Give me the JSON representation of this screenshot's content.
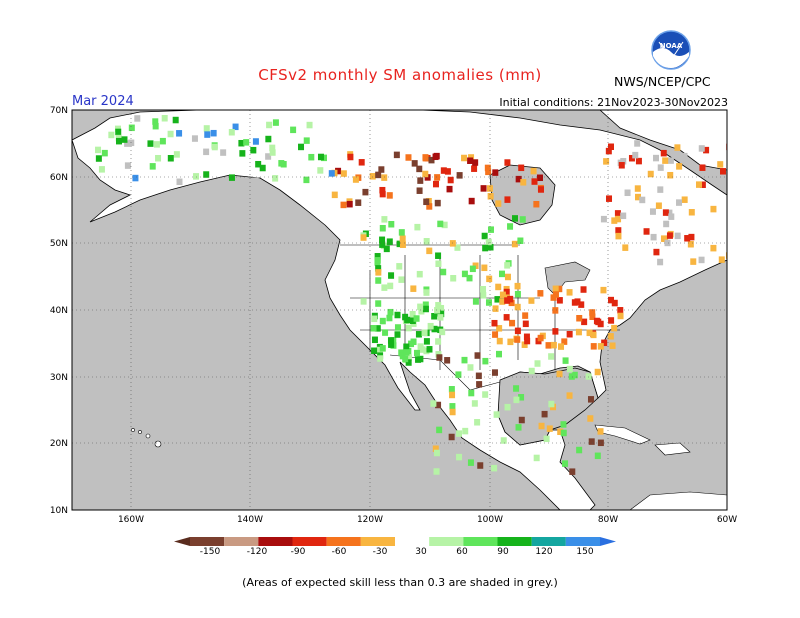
{
  "title": "CFSv2 monthly SM anomalies (mm)",
  "month": "Mar 2024",
  "initial_conditions": "Initial conditions: 21Nov2023-30Nov2023",
  "agency": "NWS/NCEP/CPC",
  "logo_text": "NOAA",
  "footnote": "(Areas of expected skill less than 0.3 are shaded in grey.)",
  "axes": {
    "lat_ticks": [
      "70N",
      "60N",
      "50N",
      "40N",
      "30N",
      "20N",
      "10N"
    ],
    "lon_ticks": [
      "160W",
      "140W",
      "120W",
      "100W",
      "80W",
      "60W"
    ]
  },
  "colorbar": {
    "labels": [
      "-150",
      "-120",
      "-90",
      "-60",
      "-30",
      "30",
      "60",
      "90",
      "120",
      "150"
    ],
    "colors": [
      "#7a3f2e",
      "#c99a82",
      "#a80d0d",
      "#e0260f",
      "#f5731d",
      "#f8b540",
      "#ffffff",
      "#b6f3a6",
      "#5fe55b",
      "#16b31b",
      "#14a6a0",
      "#3a8fe8"
    ],
    "low_arrow_color": "#5a2c1e",
    "high_arrow_color": "#2a6fe0"
  },
  "colors": {
    "land": "#ffffff",
    "ocean": "#c0c0c0",
    "title": "#e8231f",
    "month": "#2a36c8"
  }
}
